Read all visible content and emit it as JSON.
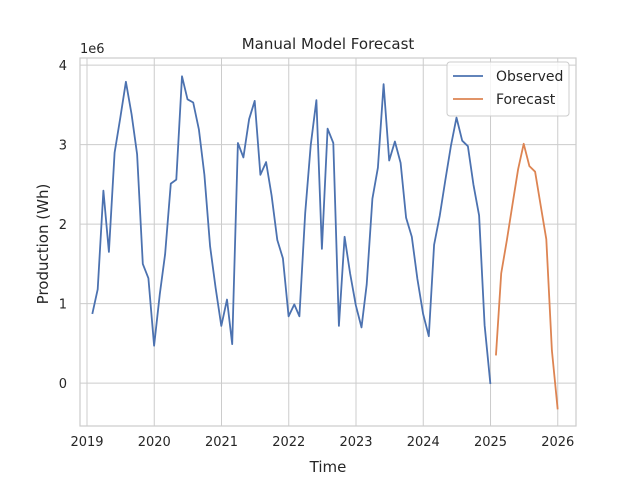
{
  "chart_data": {
    "type": "line",
    "title": "Manual Model Forecast",
    "xlabel": "Time",
    "ylabel": "Production (Wh)",
    "y_offset_label": "1e6",
    "x_ticks": [
      "2019",
      "2020",
      "2021",
      "2022",
      "2023",
      "2024",
      "2025",
      "2026"
    ],
    "y_ticks": [
      "0",
      "1",
      "2",
      "3",
      "4"
    ],
    "xlim": [
      "2018-11-24",
      "2026-04-10"
    ],
    "ylim": [
      -540000,
      4090000
    ],
    "grid": true,
    "legend_position": "top-right",
    "series": [
      {
        "name": "Observed",
        "color": "#4c72b0",
        "x": [
          "2019-01-31",
          "2019-02-28",
          "2019-03-31",
          "2019-04-30",
          "2019-05-31",
          "2019-06-30",
          "2019-07-31",
          "2019-08-31",
          "2019-09-30",
          "2019-10-31",
          "2019-11-30",
          "2019-12-31",
          "2020-01-31",
          "2020-02-29",
          "2020-03-31",
          "2020-04-30",
          "2020-05-31",
          "2020-06-30",
          "2020-07-31",
          "2020-08-31",
          "2020-09-30",
          "2020-10-31",
          "2020-11-30",
          "2020-12-31",
          "2021-01-31",
          "2021-02-28",
          "2021-03-31",
          "2021-04-30",
          "2021-05-31",
          "2021-06-30",
          "2021-07-31",
          "2021-08-31",
          "2021-09-30",
          "2021-10-31",
          "2021-11-30",
          "2021-12-31",
          "2022-01-31",
          "2022-02-28",
          "2022-03-31",
          "2022-04-30",
          "2022-05-31",
          "2022-06-30",
          "2022-07-31",
          "2022-08-31",
          "2022-09-30",
          "2022-10-31",
          "2022-11-30",
          "2022-12-31",
          "2023-01-31",
          "2023-02-28",
          "2023-03-31",
          "2023-04-30",
          "2023-05-31",
          "2023-06-30",
          "2023-07-31",
          "2023-08-31",
          "2023-09-30",
          "2023-10-31",
          "2023-11-30",
          "2023-12-31",
          "2024-01-31",
          "2024-02-29",
          "2024-03-31",
          "2024-04-30",
          "2024-05-31",
          "2024-06-30",
          "2024-07-31",
          "2024-08-31",
          "2024-09-30",
          "2024-10-31",
          "2024-11-30",
          "2024-12-31"
        ],
        "values": [
          880000,
          1180000,
          2420000,
          1650000,
          2900000,
          3330000,
          3790000,
          3380000,
          2880000,
          1500000,
          1320000,
          470000,
          1120000,
          1620000,
          2510000,
          2560000,
          3860000,
          3570000,
          3530000,
          3190000,
          2620000,
          1720000,
          1200000,
          720000,
          1050000,
          490000,
          3020000,
          2840000,
          3320000,
          3550000,
          2620000,
          2780000,
          2360000,
          1800000,
          1570000,
          840000,
          990000,
          840000,
          2140000,
          2990000,
          3560000,
          1690000,
          3200000,
          3020000,
          720000,
          1840000,
          1380000,
          980000,
          700000,
          1240000,
          2320000,
          2710000,
          3760000,
          2800000,
          3040000,
          2770000,
          2080000,
          1840000,
          1310000,
          870000,
          590000,
          1740000,
          2110000,
          2550000,
          2990000,
          3340000,
          3050000,
          2980000,
          2500000,
          2110000,
          730000,
          0
        ]
      },
      {
        "name": "Forecast",
        "color": "#dd8452",
        "x": [
          "2025-01-31",
          "2025-02-28",
          "2025-03-31",
          "2025-04-30",
          "2025-05-31",
          "2025-06-30",
          "2025-07-31",
          "2025-08-31",
          "2025-09-30",
          "2025-10-31",
          "2025-11-30",
          "2025-12-31"
        ],
        "values": [
          360000,
          1380000,
          1800000,
          2240000,
          2690000,
          3010000,
          2730000,
          2660000,
          2240000,
          1810000,
          410000,
          -320000
        ]
      }
    ]
  }
}
